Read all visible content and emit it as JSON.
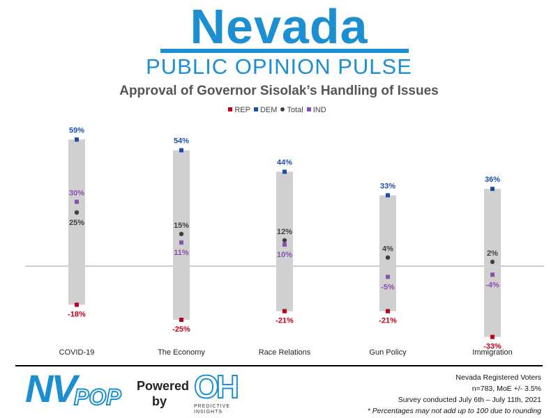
{
  "header": {
    "brand_title": "Nevada",
    "brand_subtitle": "PUBLIC OPINION PULSE",
    "brand_color": "#1b8fd1"
  },
  "chart_data": {
    "type": "range-dot",
    "title": "Approval of Governor Sisolak’s Handling of Issues",
    "categories": [
      "COVID-19",
      "The Economy",
      "Race Relations",
      "Gun Policy",
      "Immigration"
    ],
    "series": [
      {
        "name": "REP",
        "values": [
          -18,
          -25,
          -21,
          -21,
          -33
        ],
        "color": "#c0001a",
        "marker": "square"
      },
      {
        "name": "DEM",
        "values": [
          59,
          54,
          44,
          33,
          36
        ],
        "color": "#1f4ea8",
        "marker": "square"
      },
      {
        "name": "Total",
        "values": [
          25,
          15,
          12,
          4,
          2
        ],
        "color": "#404040",
        "marker": "circle"
      },
      {
        "name": "IND",
        "values": [
          30,
          11,
          10,
          -5,
          -4
        ],
        "color": "#8a4fb0",
        "marker": "square"
      }
    ],
    "data_labels": {
      "REP": [
        "-18%",
        "-25%",
        "-21%",
        "-21%",
        "-33%"
      ],
      "DEM": [
        "59%",
        "54%",
        "44%",
        "33%",
        "36%"
      ],
      "Total": [
        "25%",
        "15%",
        "12%",
        "4%",
        "2%"
      ],
      "IND": [
        "30%",
        "11%",
        "10%",
        "-5%",
        "-4%"
      ]
    },
    "ylim": [
      -35,
      62
    ],
    "range_bar_color": "#d0d0d0",
    "legend_position": "top-center",
    "grid": false
  },
  "footer": {
    "logo_nv": "NV",
    "logo_pop": "POP",
    "powered": "Powered",
    "by": "by",
    "partner_logo": "OH",
    "partner_name": "PREDICTIVE INSIGHTS",
    "notes": [
      "Nevada Registered Voters",
      "n=783, MoE +/- 3.5%",
      "Survey conducted July 6th – July 11th, 2021"
    ],
    "note_italic": "* Percentages may not add up to 100 due to rounding"
  }
}
